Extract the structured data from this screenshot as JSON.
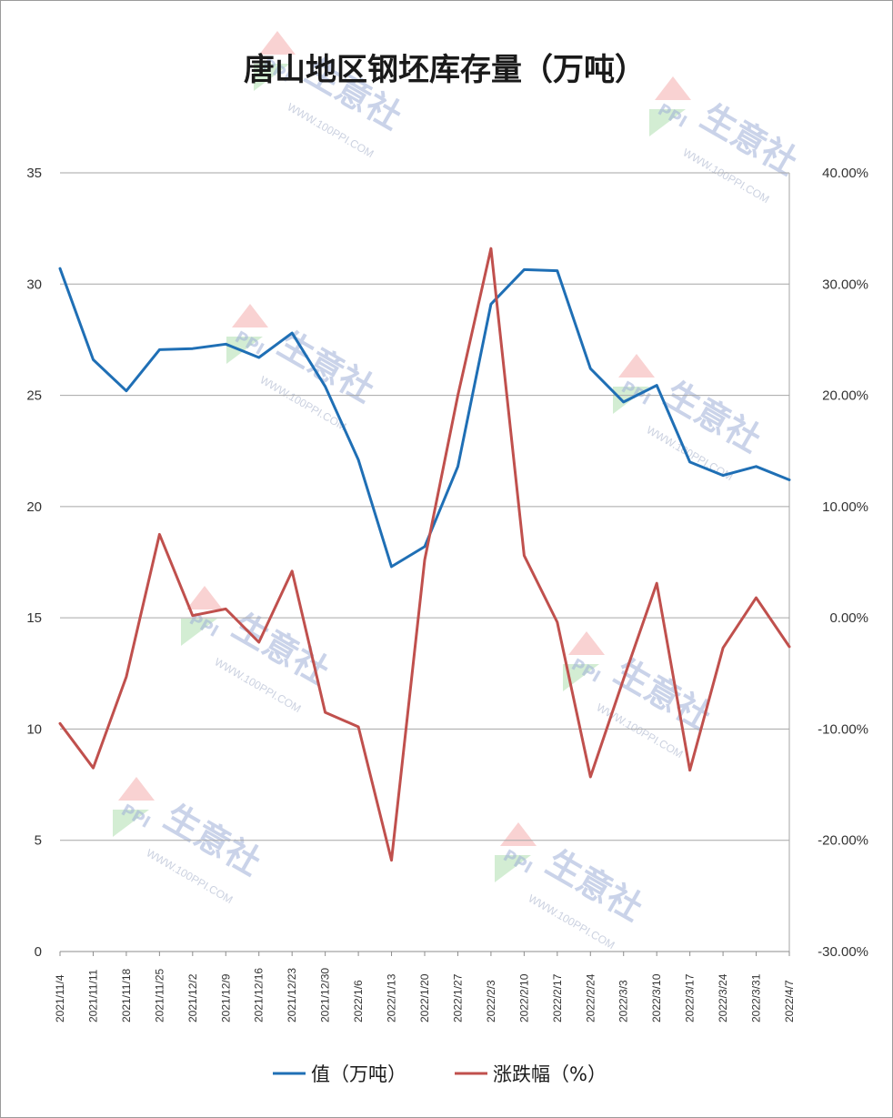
{
  "chart_data": {
    "type": "line",
    "title": "唐山地区钢坯库存量（万吨）",
    "categories": [
      "2021/11/4",
      "2021/11/11",
      "2021/11/18",
      "2021/11/25",
      "2021/12/2",
      "2021/12/9",
      "2021/12/16",
      "2021/12/23",
      "2021/12/30",
      "2022/1/6",
      "2022/1/13",
      "2022/1/20",
      "2022/1/27",
      "2022/2/3",
      "2022/2/10",
      "2022/2/17",
      "2022/2/24",
      "2022/3/3",
      "2022/3/10",
      "2022/3/17",
      "2022/3/24",
      "2022/3/31",
      "2022/4/7"
    ],
    "series": [
      {
        "name": "值（万吨）",
        "axis": "left",
        "color": "#1f6fb5",
        "values": [
          30.7,
          26.6,
          25.2,
          27.05,
          27.1,
          27.3,
          26.7,
          27.8,
          25.4,
          22.1,
          17.3,
          18.2,
          21.8,
          29.1,
          30.65,
          30.6,
          26.2,
          24.7,
          25.45,
          22.0,
          21.4,
          21.8,
          21.2
        ]
      },
      {
        "name": "涨跌幅（%）",
        "axis": "right",
        "color": "#c0504d",
        "values": [
          -9.5,
          -13.5,
          -5.3,
          7.5,
          0.2,
          0.8,
          -2.2,
          4.2,
          -8.5,
          -9.8,
          -21.8,
          5.2,
          20.0,
          33.2,
          5.6,
          -0.4,
          -14.3,
          -5.5,
          3.1,
          -13.7,
          -2.7,
          1.8,
          -2.6
        ]
      }
    ],
    "y_left": {
      "ylim": [
        0,
        35
      ],
      "ticks": [
        "0",
        "5",
        "10",
        "15",
        "20",
        "25",
        "30",
        "35"
      ]
    },
    "y_right": {
      "ylim": [
        -30,
        40
      ],
      "ticks": [
        "-30.00%",
        "-20.00%",
        "-10.00%",
        "0.00%",
        "10.00%",
        "20.00%",
        "30.00%",
        "40.00%"
      ]
    },
    "grid": true,
    "legend_position": "bottom"
  },
  "legend": [
    {
      "label": "值（万吨）",
      "color": "#1f6fb5"
    },
    {
      "label": "涨跌幅（%）",
      "color": "#c0504d"
    }
  ],
  "watermark": {
    "brand": "生意社",
    "logo": "PPI",
    "url": "WWW.100PPI.COM"
  }
}
